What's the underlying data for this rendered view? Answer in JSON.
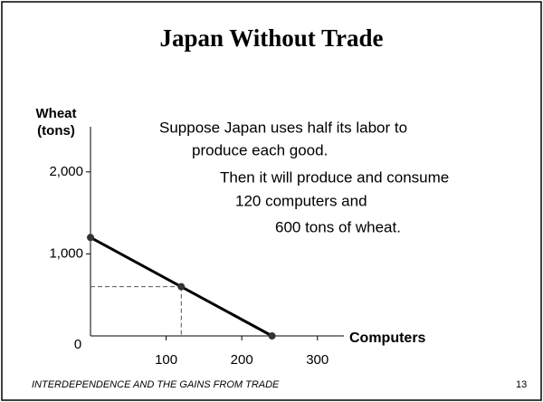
{
  "chart_data": {
    "type": "line",
    "title": "Japan Without Trade",
    "ylabel": [
      "Wheat",
      "(tons)"
    ],
    "xlabel": "Computers",
    "annotations": [
      "Suppose Japan uses half its labor to",
      "produce each good.",
      "Then it will produce and consume",
      "120 computers and",
      "600 tons of wheat."
    ],
    "x": [
      0,
      120,
      240
    ],
    "series": [
      {
        "color": "#000000",
        "values": [
          1200,
          600,
          0
        ]
      }
    ],
    "xlim": [
      0,
      335
    ],
    "ylim": [
      0,
      2550
    ],
    "xticks": [
      100,
      200,
      300
    ],
    "yticks": [
      0,
      {
        "value": 1000,
        "label": "1,000"
      },
      {
        "value": 2000,
        "label": "2,000"
      }
    ],
    "footer": "INTERDEPENDENCE AND THE GAINS FROM TRADE",
    "page": "13"
  }
}
